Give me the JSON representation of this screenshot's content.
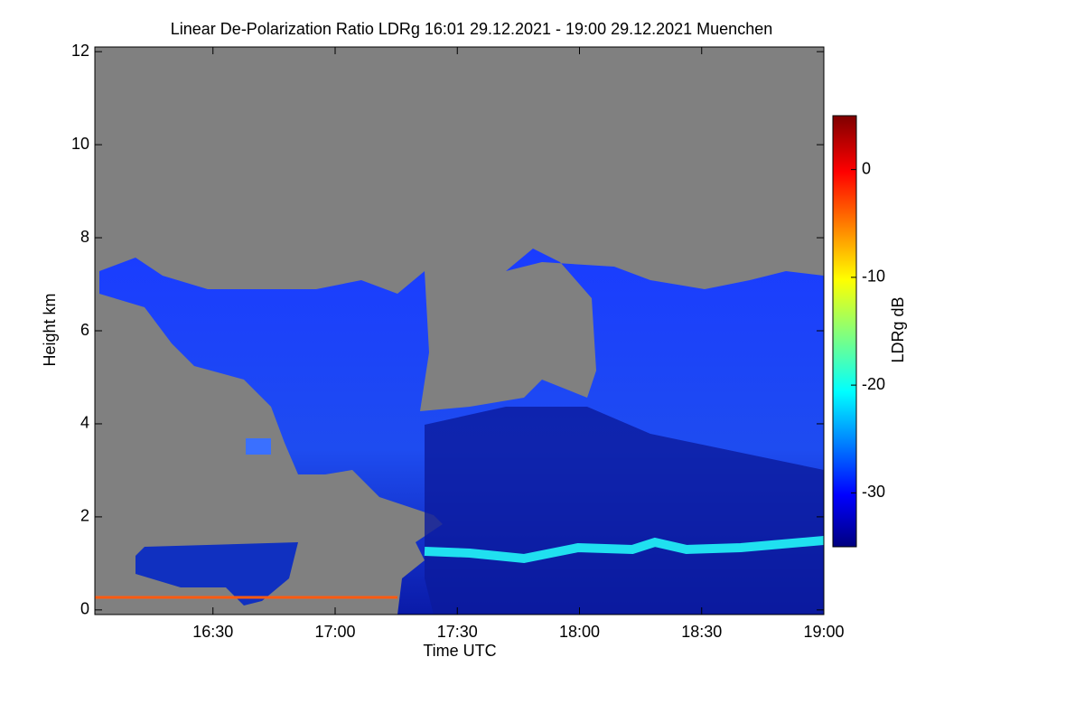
{
  "chart_data": {
    "type": "heatmap",
    "title": "Linear De-Polarization Ratio LDRg   16:01 29.12.2021 - 19:00 29.12.2021 Muenchen",
    "xlabel": "Time UTC",
    "ylabel": "Height km",
    "xlim": [
      961,
      1140
    ],
    "xticks": [
      {
        "value": 990,
        "label": "16:30"
      },
      {
        "value": 1020,
        "label": "17:00"
      },
      {
        "value": 1050,
        "label": "17:30"
      },
      {
        "value": 1080,
        "label": "18:00"
      },
      {
        "value": 1110,
        "label": "18:30"
      },
      {
        "value": 1140,
        "label": "19:00"
      }
    ],
    "ylim": [
      -0.1,
      12.1
    ],
    "yticks": [
      0,
      2,
      4,
      6,
      8,
      10,
      12
    ],
    "colorbar": {
      "label": "LDRg dB",
      "lim": [
        -35,
        5
      ],
      "ticks": [
        0,
        -10,
        -20,
        -30
      ],
      "colormap": "jet"
    },
    "background": "#808080"
  }
}
